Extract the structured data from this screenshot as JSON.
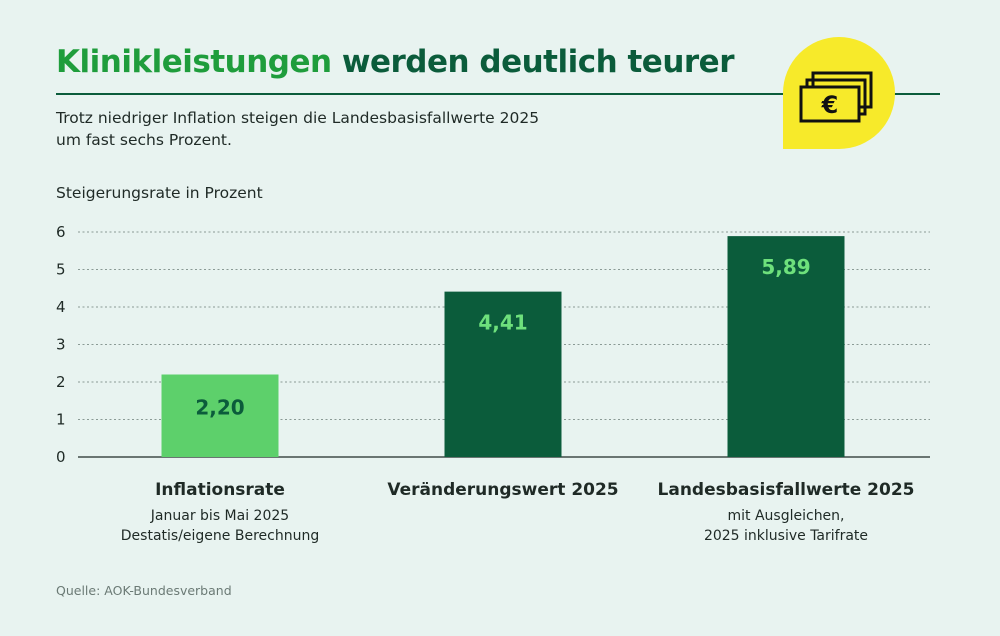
{
  "header": {
    "title_highlight": "Klinikleistungen",
    "title_rest": "werden deutlich teurer",
    "subtitle_line1": "Trotz niedriger Inflation steigen die Landesbasisfallwerte 2025",
    "subtitle_line2": "um fast sechs Prozent."
  },
  "badge": {
    "icon": "euro-banknotes-icon",
    "color": "#f7ea2a"
  },
  "colors": {
    "bar_light": "#5dd06b",
    "bar_dark": "#0b5c3b",
    "label_on_light": "#0b5c3b",
    "label_on_dark": "#6ee07c",
    "grid": "#8a9a95"
  },
  "chart_data": {
    "type": "bar",
    "ylabel": "Steigerungsrate in Prozent",
    "ylim": [
      0,
      6
    ],
    "yticks": [
      "0",
      "1",
      "2",
      "3",
      "4",
      "5",
      "6"
    ],
    "grid": true,
    "categories": [
      "Inflationsrate",
      "Veränderungswert 2025",
      "Landesbasisfallwerte 2025"
    ],
    "values": [
      2.2,
      4.41,
      5.89
    ],
    "value_labels": [
      "2,20",
      "4,41",
      "5,89"
    ],
    "category_notes": [
      [
        "Januar bis Mai 2025",
        "Destatis/eigene Berechnung"
      ],
      [],
      [
        "mit Ausgleichen,",
        "2025 inklusive Tarifrate"
      ]
    ]
  },
  "footer": {
    "source": "Quelle: AOK-Bundesverband"
  }
}
